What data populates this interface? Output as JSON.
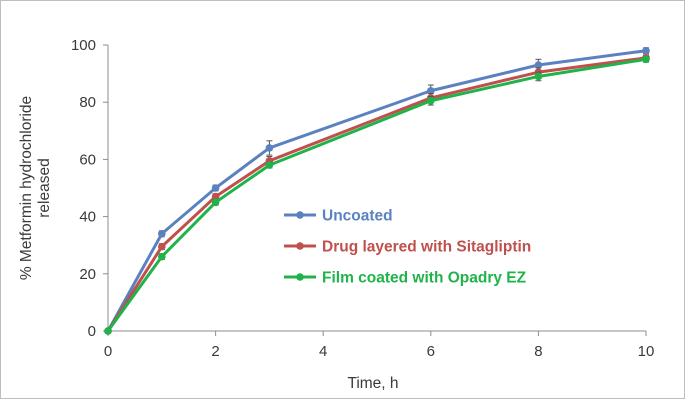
{
  "chart_data": {
    "type": "line",
    "xlabel": "Time, h",
    "ylabel_lines": [
      "% Metformin hydrochloride",
      "released"
    ],
    "xlim": [
      0,
      10
    ],
    "ylim": [
      0,
      100
    ],
    "x_ticks": [
      "0",
      "2",
      "4",
      "6",
      "8",
      "10"
    ],
    "y_ticks": [
      "0",
      "20",
      "40",
      "60",
      "80",
      "100"
    ],
    "grid": false,
    "legend_position": "center",
    "series": [
      {
        "name": "Uncoated",
        "color": "#5b82c0",
        "x": [
          0,
          1,
          2,
          3,
          6,
          8,
          10
        ],
        "y": [
          0,
          34,
          50,
          64,
          84,
          93,
          98
        ],
        "err": [
          0,
          1,
          1,
          2.5,
          2,
          2,
          1
        ]
      },
      {
        "name": "Drug layered with Sitagliptin",
        "color": "#c0504d",
        "x": [
          0,
          1,
          2,
          3,
          6,
          8,
          10
        ],
        "y": [
          0,
          29.5,
          47,
          59.5,
          81.5,
          90.5,
          95.5
        ],
        "err": [
          0,
          1,
          1,
          1.5,
          1.5,
          1.5,
          1
        ]
      },
      {
        "name": "Film coated with Opadry EZ",
        "color": "#1fb34a",
        "x": [
          0,
          1,
          2,
          3,
          6,
          8,
          10
        ],
        "y": [
          0,
          26,
          45,
          58,
          80.5,
          89,
          95
        ],
        "err": [
          0,
          1,
          1,
          1,
          1.5,
          1.5,
          1
        ]
      }
    ]
  }
}
